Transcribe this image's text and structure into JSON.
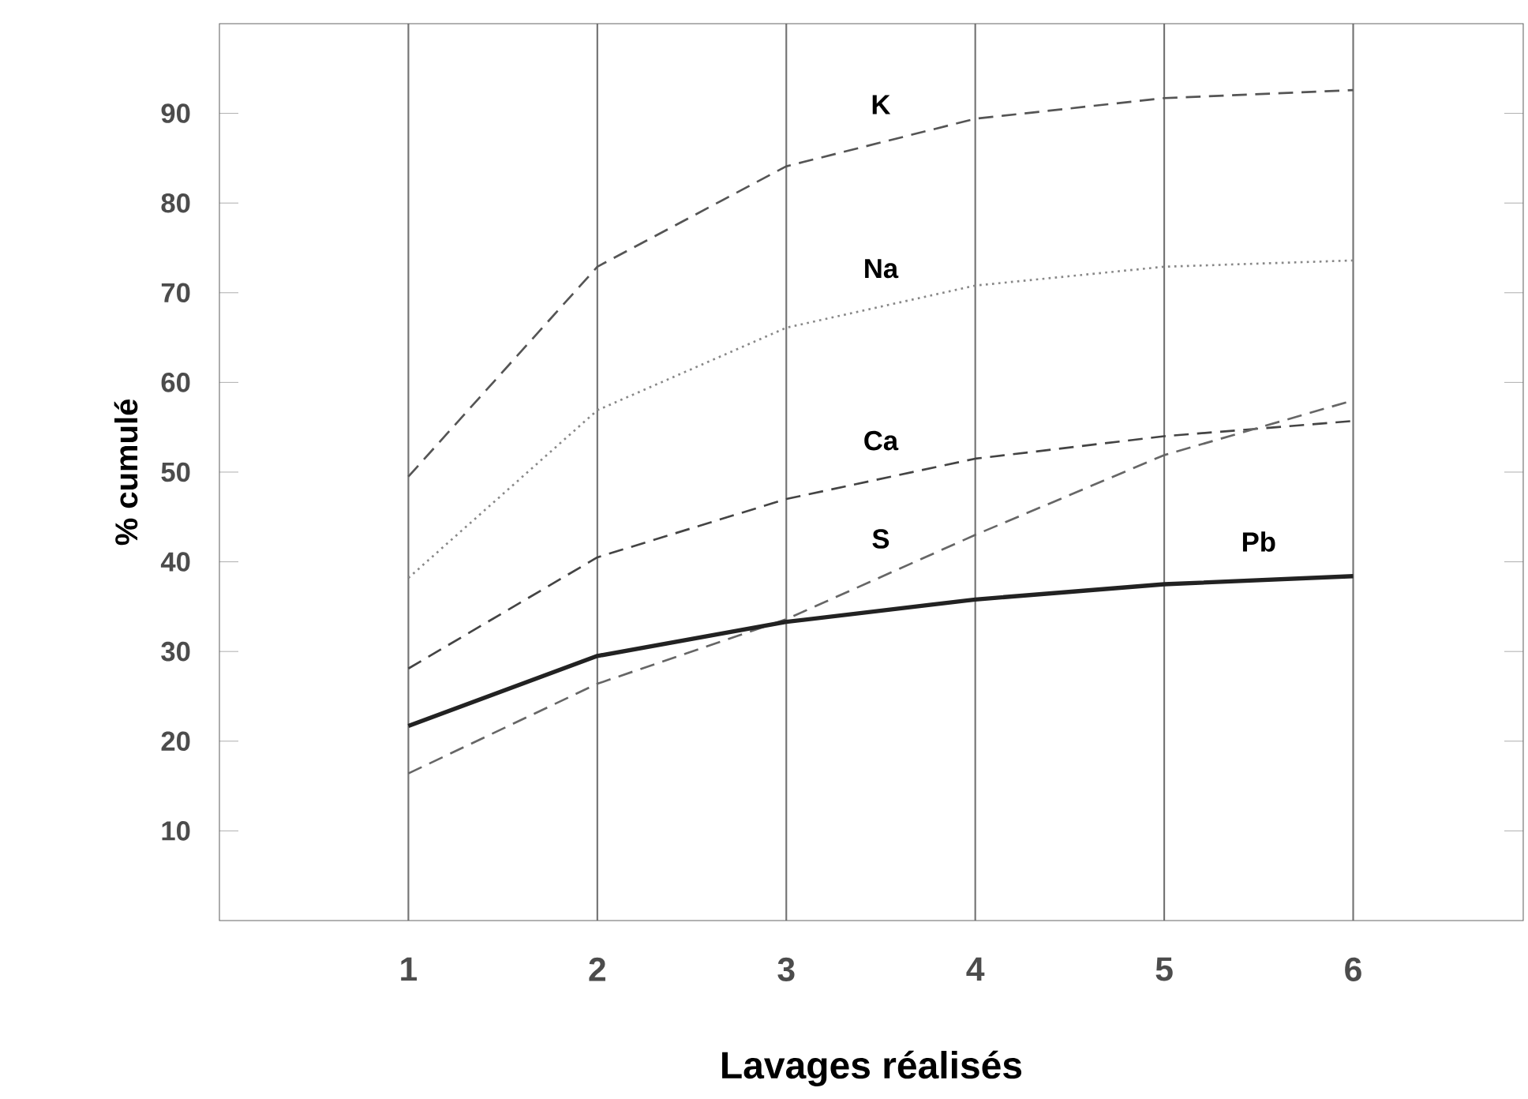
{
  "chart_data": {
    "type": "line",
    "xlabel": "Lavages réalisés",
    "ylabel": "% cumulé",
    "x": [
      1,
      2,
      3,
      4,
      5,
      6
    ],
    "xlim": [
      0,
      6.9
    ],
    "ylim": [
      0,
      100
    ],
    "xticks": [
      1,
      2,
      3,
      4,
      5,
      6
    ],
    "yticks": [
      10,
      20,
      30,
      40,
      50,
      60,
      70,
      80,
      90
    ],
    "grid": "x",
    "legend": false,
    "marker": "none",
    "series": [
      {
        "name": "K",
        "color": "#555555",
        "line_style": "dashed",
        "values": [
          49.5,
          72.9,
          84.1,
          89.4,
          91.7,
          92.6
        ]
      },
      {
        "name": "Na",
        "color": "#888888",
        "line_style": "dotted",
        "values": [
          38.2,
          56.9,
          66.1,
          70.8,
          72.9,
          73.6
        ]
      },
      {
        "name": "Ca",
        "color": "#444444",
        "line_style": "dashed",
        "values": [
          28.1,
          40.5,
          47.0,
          51.5,
          54.0,
          55.7
        ]
      },
      {
        "name": "S",
        "color": "#666666",
        "line_style": "dashed",
        "values": [
          16.4,
          26.4,
          33.6,
          43.0,
          51.9,
          58.0
        ]
      },
      {
        "name": "Pb",
        "color": "#222222",
        "line_style": "solid",
        "values": [
          21.7,
          29.5,
          33.3,
          35.8,
          37.5,
          38.4
        ]
      }
    ]
  }
}
